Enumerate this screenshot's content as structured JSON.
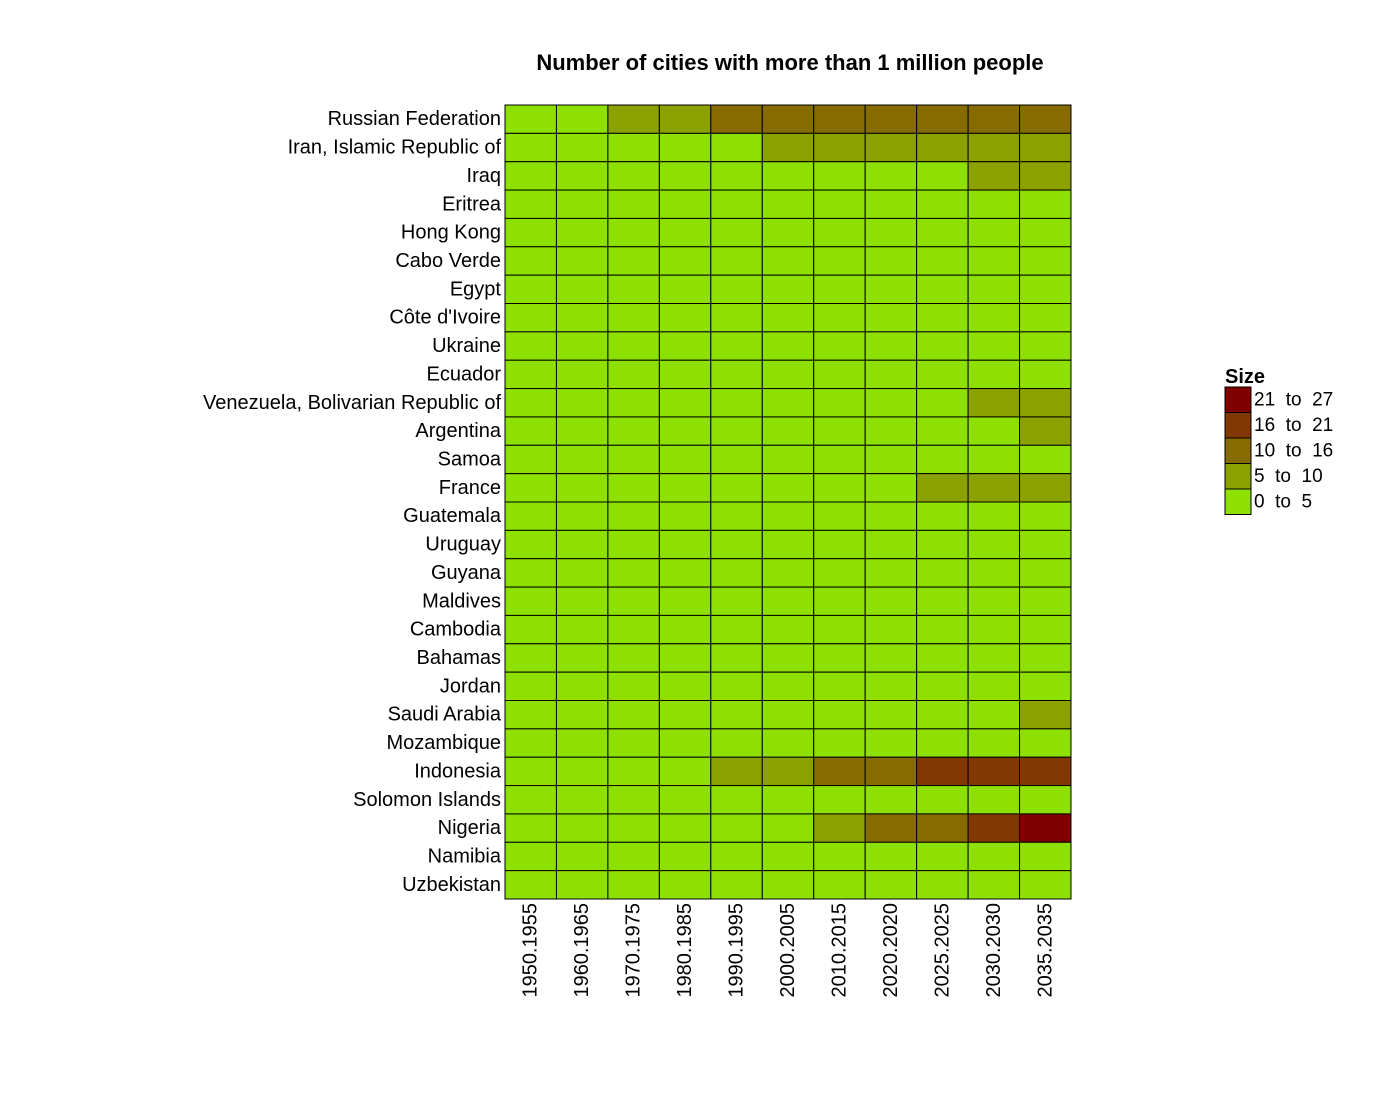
{
  "chart_data": {
    "type": "heatmap",
    "title": "Number of cities with more than 1 million people",
    "x_categories": [
      "1950.1955",
      "1960.1965",
      "1970.1975",
      "1980.1985",
      "1990.1995",
      "2000.2005",
      "2010.2015",
      "2020.2020",
      "2025.2025",
      "2030.2030",
      "2035.2035"
    ],
    "y_categories": [
      "Russian Federation",
      "Iran, Islamic Republic of",
      "Iraq",
      "Eritrea",
      "Hong Kong",
      "Cabo Verde",
      "Egypt",
      "Côte d'Ivoire",
      "Ukraine",
      "Ecuador",
      "Venezuela, Bolivarian Republic of",
      "Argentina",
      "Samoa",
      "France",
      "Guatemala",
      "Uruguay",
      "Guyana",
      "Maldives",
      "Cambodia",
      "Bahamas",
      "Jordan",
      "Saudi Arabia",
      "Mozambique",
      "Indonesia",
      "Solomon Islands",
      "Nigeria",
      "Namibia",
      "Uzbekistan"
    ],
    "value_bins": [
      [
        0,
        0,
        1,
        1,
        2,
        2,
        2,
        2,
        2,
        2,
        2
      ],
      [
        0,
        0,
        0,
        0,
        0,
        1,
        1,
        1,
        1,
        1,
        1
      ],
      [
        0,
        0,
        0,
        0,
        0,
        0,
        0,
        0,
        0,
        1,
        1
      ],
      [
        0,
        0,
        0,
        0,
        0,
        0,
        0,
        0,
        0,
        0,
        0
      ],
      [
        0,
        0,
        0,
        0,
        0,
        0,
        0,
        0,
        0,
        0,
        0
      ],
      [
        0,
        0,
        0,
        0,
        0,
        0,
        0,
        0,
        0,
        0,
        0
      ],
      [
        0,
        0,
        0,
        0,
        0,
        0,
        0,
        0,
        0,
        0,
        0
      ],
      [
        0,
        0,
        0,
        0,
        0,
        0,
        0,
        0,
        0,
        0,
        0
      ],
      [
        0,
        0,
        0,
        0,
        0,
        0,
        0,
        0,
        0,
        0,
        0
      ],
      [
        0,
        0,
        0,
        0,
        0,
        0,
        0,
        0,
        0,
        0,
        0
      ],
      [
        0,
        0,
        0,
        0,
        0,
        0,
        0,
        0,
        0,
        1,
        1
      ],
      [
        0,
        0,
        0,
        0,
        0,
        0,
        0,
        0,
        0,
        0,
        1
      ],
      [
        0,
        0,
        0,
        0,
        0,
        0,
        0,
        0,
        0,
        0,
        0
      ],
      [
        0,
        0,
        0,
        0,
        0,
        0,
        0,
        0,
        1,
        1,
        1
      ],
      [
        0,
        0,
        0,
        0,
        0,
        0,
        0,
        0,
        0,
        0,
        0
      ],
      [
        0,
        0,
        0,
        0,
        0,
        0,
        0,
        0,
        0,
        0,
        0
      ],
      [
        0,
        0,
        0,
        0,
        0,
        0,
        0,
        0,
        0,
        0,
        0
      ],
      [
        0,
        0,
        0,
        0,
        0,
        0,
        0,
        0,
        0,
        0,
        0
      ],
      [
        0,
        0,
        0,
        0,
        0,
        0,
        0,
        0,
        0,
        0,
        0
      ],
      [
        0,
        0,
        0,
        0,
        0,
        0,
        0,
        0,
        0,
        0,
        0
      ],
      [
        0,
        0,
        0,
        0,
        0,
        0,
        0,
        0,
        0,
        0,
        0
      ],
      [
        0,
        0,
        0,
        0,
        0,
        0,
        0,
        0,
        0,
        0,
        1
      ],
      [
        0,
        0,
        0,
        0,
        0,
        0,
        0,
        0,
        0,
        0,
        0
      ],
      [
        0,
        0,
        0,
        0,
        1,
        1,
        2,
        2,
        3,
        3,
        3
      ],
      [
        0,
        0,
        0,
        0,
        0,
        0,
        0,
        0,
        0,
        0,
        0
      ],
      [
        0,
        0,
        0,
        0,
        0,
        0,
        1,
        2,
        2,
        3,
        4
      ],
      [
        0,
        0,
        0,
        0,
        0,
        0,
        0,
        0,
        0,
        0,
        0
      ],
      [
        0,
        0,
        0,
        0,
        0,
        0,
        0,
        0,
        0,
        0,
        0
      ]
    ],
    "legend": {
      "title": "Size",
      "placement": "right",
      "bins": [
        {
          "label": "0  to  5",
          "min": 0,
          "max": 5,
          "color": "#8ee000"
        },
        {
          "label": "5  to  10",
          "min": 5,
          "max": 10,
          "color": "#8aa100"
        },
        {
          "label": "10  to  16",
          "min": 10,
          "max": 16,
          "color": "#866b00"
        },
        {
          "label": "16  to  21",
          "min": 16,
          "max": 21,
          "color": "#823800"
        },
        {
          "label": "21  to  27",
          "min": 21,
          "max": 27,
          "color": "#800000"
        }
      ]
    },
    "border_color": "#000000"
  }
}
